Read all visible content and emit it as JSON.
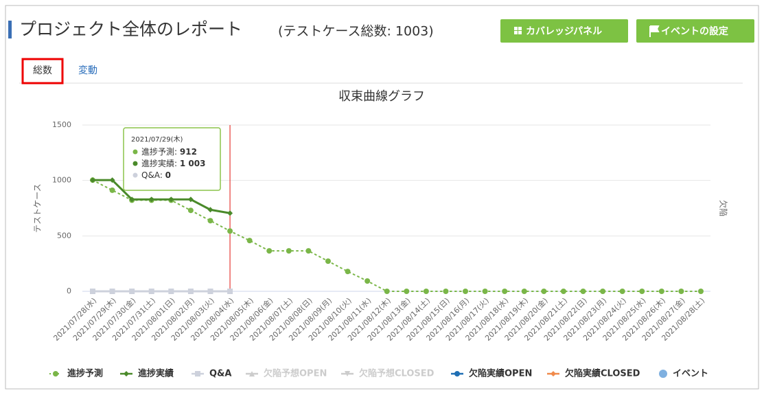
{
  "header": {
    "title": "プロジェクト全体のレポート",
    "subtitle": "(テストケース総数: 1003)",
    "buttons": [
      "カバレッジパネル",
      "イベントの設定"
    ]
  },
  "tabs": {
    "items": [
      "総数",
      "変動"
    ],
    "active": 0
  },
  "chart_data": {
    "type": "line",
    "title": "収束曲線グラフ",
    "y_label": "テストケース",
    "y2_label": "欠陥",
    "categories": [
      "2021/07/28(水)",
      "2021/07/29(木)",
      "2021/07/30(金)",
      "2021/07/31(土)",
      "2021/08/01(日)",
      "2021/08/02(月)",
      "2021/08/03(火)",
      "2021/08/04(水)",
      "2021/08/05(木)",
      "2021/08/06(金)",
      "2021/08/07(土)",
      "2021/08/08(日)",
      "2021/08/09(月)",
      "2021/08/10(火)",
      "2021/08/11(水)",
      "2021/08/12(木)",
      "2021/08/13(金)",
      "2021/08/14(土)",
      "2021/08/15(日)",
      "2021/08/16(月)",
      "2021/08/17(火)",
      "2021/08/18(水)",
      "2021/08/19(木)",
      "2021/08/20(金)",
      "2021/08/21(土)",
      "2021/08/22(日)",
      "2021/08/23(月)",
      "2021/08/24(火)",
      "2021/08/25(水)",
      "2021/08/26(木)",
      "2021/08/27(金)",
      "2021/08/28(土)"
    ],
    "series": [
      {
        "name": "進捗予測",
        "color": "#7ab648",
        "style": "dotted",
        "marker": "circle",
        "values": [
          1003,
          912,
          822,
          822,
          822,
          730,
          637,
          544,
          458,
          365,
          365,
          365,
          272,
          179,
          93,
          0,
          0,
          0,
          0,
          0,
          0,
          0,
          0,
          0,
          0,
          0,
          0,
          0,
          0,
          0,
          0,
          0
        ]
      },
      {
        "name": "進捗実績",
        "color": "#4a8a2a",
        "style": "solid",
        "marker": "diamond",
        "values": [
          1003,
          1003,
          829,
          829,
          829,
          829,
          736,
          705,
          null,
          null,
          null,
          null,
          null,
          null,
          null,
          null,
          null,
          null,
          null,
          null,
          null,
          null,
          null,
          null,
          null,
          null,
          null,
          null,
          null,
          null,
          null,
          null
        ]
      },
      {
        "name": "Q&A",
        "color": "#cdd1dc",
        "style": "solid",
        "marker": "square",
        "values": [
          0,
          0,
          0,
          0,
          0,
          0,
          0,
          0,
          null,
          null,
          null,
          null,
          null,
          null,
          null,
          null,
          null,
          null,
          null,
          null,
          null,
          null,
          null,
          null,
          null,
          null,
          null,
          null,
          null,
          null,
          null,
          null
        ]
      }
    ],
    "legend_extra": [
      {
        "name": "欠陥予想OPEN",
        "color": "#cccccc",
        "marker": "triangle"
      },
      {
        "name": "欠陥予想CLOSED",
        "color": "#cccccc",
        "marker": "triangle-down"
      },
      {
        "name": "欠陥実績OPEN",
        "color": "#1f6fb4",
        "marker": "circle"
      },
      {
        "name": "欠陥実績CLOSED",
        "color": "#f08a4b",
        "marker": "diamond"
      },
      {
        "name": "イベント",
        "color": "#7fb0e0",
        "marker": "dot"
      }
    ],
    "ylim": [
      0,
      1500
    ],
    "yticks": [
      0,
      500,
      1000,
      1500
    ],
    "grid": true,
    "tooltip": {
      "title": "2021/07/29(木)",
      "items": [
        {
          "name": "進捗予測",
          "value": 912
        },
        {
          "name": "進捗実績",
          "value": 1003,
          "value_label": "1 003"
        },
        {
          "name": "Q&A",
          "value": 0
        }
      ]
    }
  }
}
